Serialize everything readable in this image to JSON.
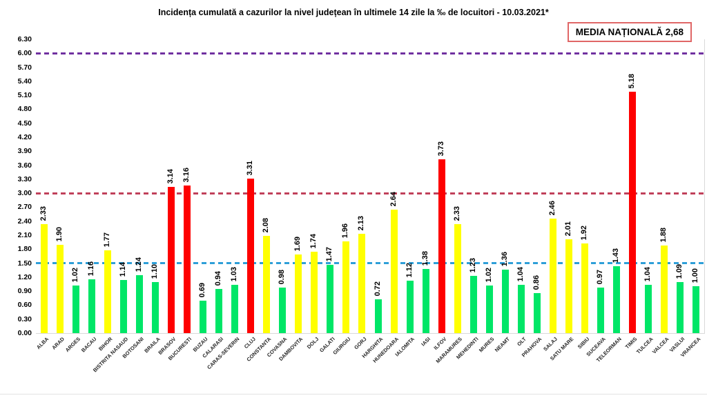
{
  "title": "Incidența cumulată a cazurilor la nivel județean în ultimele 14 zile la ‰ de locuitori - 10.03.2021*",
  "national_average": {
    "label": "MEDIA NAȚIONALĂ",
    "value": "2,68"
  },
  "chart_data": {
    "type": "bar",
    "title": "Incidența cumulată a cazurilor la nivel județean în ultimele 14 zile la ‰ de locuitori - 10.03.2021*",
    "xlabel": "",
    "ylabel": "",
    "ylim": [
      0,
      6.3
    ],
    "ytick_step": 0.3,
    "grid": false,
    "legend_position": "none",
    "categories": [
      "ALBA",
      "ARAD",
      "ARGES",
      "BACAU",
      "BIHOR",
      "BISTRITA NASAUD",
      "BOTOSANI",
      "BRAILA",
      "BRASOV",
      "BUCURESTI",
      "BUZAU",
      "CALARASI",
      "CARAS-SEVERIN",
      "CLUJ",
      "CONSTANTA",
      "COVASNA",
      "DAMBOVITA",
      "DOLJ",
      "GALATI",
      "GIURGIU",
      "GORJ",
      "HARGHITA",
      "HUNEDOARA",
      "IALOMITA",
      "IASI",
      "ILFOV",
      "MARAMURES",
      "MEHEDINTI",
      "MURES",
      "NEAMT",
      "OLT",
      "PRAHOVA",
      "SALAJ",
      "SATU MARE",
      "SIBIU",
      "SUCEAVA",
      "TELEORMAN",
      "TIMIS",
      "TULCEA",
      "VALCEA",
      "VASLUI",
      "VRANCEA"
    ],
    "values": [
      2.33,
      1.9,
      1.02,
      1.16,
      1.77,
      1.14,
      1.24,
      1.1,
      3.14,
      3.16,
      0.69,
      0.94,
      1.03,
      3.31,
      2.08,
      0.98,
      1.69,
      1.74,
      1.47,
      1.96,
      2.13,
      0.72,
      2.64,
      1.12,
      1.38,
      3.73,
      2.33,
      1.23,
      1.02,
      1.36,
      1.04,
      0.86,
      2.46,
      2.01,
      1.92,
      0.97,
      1.43,
      5.18,
      1.04,
      1.88,
      1.09,
      1.0
    ],
    "reference_lines": [
      {
        "value": 6.0,
        "color": "#7030a0"
      },
      {
        "value": 3.0,
        "color": "#c0405a"
      },
      {
        "value": 1.5,
        "color": "#2e9fd8"
      }
    ],
    "color_rules": {
      "green_below": 1.5,
      "yellow_below": 3.0,
      "colors": {
        "green": "#00e667",
        "yellow": "#ffff00",
        "red": "#fe0000"
      }
    }
  }
}
